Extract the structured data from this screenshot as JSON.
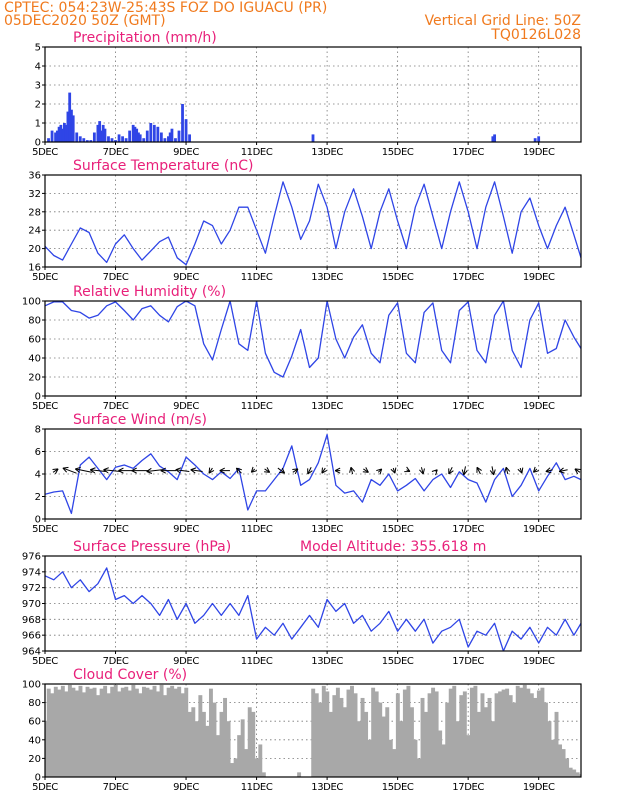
{
  "header": {
    "line1_left": "CPTEC:   054:23W-25:43S   FOZ DO IGUACU (PR)",
    "line2_left": "05DEC2020 50Z (GMT)",
    "line2_right": "Vertical Grid Line: 50Z",
    "line3_right": "TQ0126L028"
  },
  "colors": {
    "header": "#f07a1e",
    "panel_title": "#e8207a",
    "series": "#2f45e6",
    "cloud": "#a8a8a8"
  },
  "x_axis": {
    "tick_labels": [
      "5DEC",
      "7DEC",
      "9DEC",
      "11DEC",
      "13DEC",
      "15DEC",
      "17DEC",
      "19DEC"
    ],
    "tick_days": [
      5,
      7,
      9,
      11,
      13,
      15,
      17,
      19
    ],
    "start_day": 5,
    "end_day": 20.2
  },
  "chart_data": [
    {
      "id": "precip",
      "type": "bar",
      "title": "Precipitation (mm/h)",
      "ylim": [
        0,
        5
      ],
      "yticks": [
        0,
        1,
        2,
        3,
        4,
        5
      ],
      "x": [
        5.1,
        5.2,
        5.3,
        5.35,
        5.4,
        5.45,
        5.5,
        5.55,
        5.6,
        5.65,
        5.7,
        5.75,
        5.8,
        5.9,
        6.0,
        6.1,
        6.2,
        6.3,
        6.4,
        6.5,
        6.55,
        6.6,
        6.65,
        6.7,
        6.8,
        6.9,
        7.0,
        7.1,
        7.2,
        7.3,
        7.4,
        7.5,
        7.55,
        7.6,
        7.65,
        7.7,
        7.8,
        7.9,
        8.0,
        8.1,
        8.2,
        8.3,
        8.4,
        8.5,
        8.55,
        8.6,
        8.7,
        8.8,
        8.9,
        9.0,
        9.1,
        12.6,
        17.7,
        17.75,
        18.9,
        19.0
      ],
      "values": [
        0.2,
        0.6,
        0.5,
        0.6,
        0.8,
        0.9,
        0.7,
        1.0,
        0.9,
        1.6,
        2.6,
        1.7,
        1.4,
        0.5,
        0.3,
        0.2,
        0.1,
        0.1,
        0.5,
        0.9,
        1.1,
        0.6,
        0.9,
        0.7,
        0.3,
        0.2,
        0.1,
        0.4,
        0.3,
        0.2,
        0.6,
        0.9,
        0.8,
        0.7,
        0.5,
        0.4,
        0.2,
        0.6,
        1.0,
        0.9,
        0.8,
        0.5,
        0.2,
        0.3,
        0.5,
        0.7,
        0.2,
        0.6,
        2.0,
        1.2,
        0.4,
        0.4,
        0.3,
        0.4,
        0.2,
        0.3
      ]
    },
    {
      "id": "temp",
      "type": "line",
      "title": "Surface Temperature (nC)",
      "ylim": [
        16,
        36
      ],
      "yticks": [
        16,
        20,
        24,
        28,
        32,
        36
      ],
      "x": [
        5.0,
        5.25,
        5.5,
        5.75,
        6.0,
        6.25,
        6.5,
        6.75,
        7.0,
        7.25,
        7.5,
        7.75,
        8.0,
        8.25,
        8.5,
        8.75,
        9.0,
        9.25,
        9.5,
        9.75,
        10.0,
        10.25,
        10.5,
        10.75,
        11.0,
        11.25,
        11.5,
        11.75,
        12.0,
        12.25,
        12.5,
        12.75,
        13.0,
        13.25,
        13.5,
        13.75,
        14.0,
        14.25,
        14.5,
        14.75,
        15.0,
        15.25,
        15.5,
        15.75,
        16.0,
        16.25,
        16.5,
        16.75,
        17.0,
        17.25,
        17.5,
        17.75,
        18.0,
        18.25,
        18.5,
        18.75,
        19.0,
        19.25,
        19.5,
        19.75,
        20.0,
        20.2
      ],
      "values": [
        20.5,
        18.5,
        17.5,
        21,
        24.5,
        23.5,
        19,
        17,
        21,
        23,
        20,
        17.5,
        19.5,
        21.5,
        22.5,
        18,
        16.5,
        21,
        26,
        25,
        21,
        24,
        29,
        29,
        24,
        19,
        27,
        34.5,
        29,
        22,
        26,
        34,
        29,
        20,
        28,
        33,
        27,
        20,
        28,
        33,
        26,
        20,
        29,
        34,
        27,
        20,
        28,
        34.5,
        28,
        20,
        29,
        34.5,
        27,
        19,
        28,
        31,
        25,
        20,
        25,
        29,
        23,
        18
      ]
    },
    {
      "id": "rh",
      "type": "line",
      "title": "Relative Humidity (%)",
      "ylim": [
        0,
        100
      ],
      "yticks": [
        0,
        20,
        40,
        60,
        80,
        100
      ],
      "x": [
        5.0,
        5.25,
        5.5,
        5.75,
        6.0,
        6.25,
        6.5,
        6.75,
        7.0,
        7.25,
        7.5,
        7.75,
        8.0,
        8.25,
        8.5,
        8.75,
        9.0,
        9.25,
        9.5,
        9.75,
        10.0,
        10.25,
        10.5,
        10.75,
        11.0,
        11.25,
        11.5,
        11.75,
        12.0,
        12.25,
        12.5,
        12.75,
        13.0,
        13.25,
        13.5,
        13.75,
        14.0,
        14.25,
        14.5,
        14.75,
        15.0,
        15.25,
        15.5,
        15.75,
        16.0,
        16.25,
        16.5,
        16.75,
        17.0,
        17.25,
        17.5,
        17.75,
        18.0,
        18.25,
        18.5,
        18.75,
        19.0,
        19.25,
        19.5,
        19.75,
        20.0,
        20.2
      ],
      "values": [
        95,
        99,
        99,
        90,
        88,
        82,
        85,
        95,
        99,
        90,
        80,
        92,
        95,
        85,
        78,
        94,
        100,
        95,
        55,
        38,
        70,
        100,
        55,
        48,
        100,
        45,
        25,
        20,
        42,
        70,
        30,
        40,
        100,
        60,
        40,
        62,
        75,
        45,
        35,
        85,
        98,
        45,
        35,
        88,
        98,
        48,
        35,
        90,
        99,
        48,
        35,
        85,
        100,
        48,
        30,
        80,
        98,
        45,
        50,
        80,
        62,
        50
      ]
    },
    {
      "id": "wind",
      "type": "line",
      "title": "Surface Wind (m/s)",
      "ylim": [
        0,
        8
      ],
      "yticks": [
        0,
        2,
        4,
        6,
        8
      ],
      "x": [
        5.0,
        5.25,
        5.5,
        5.75,
        6.0,
        6.25,
        6.5,
        6.75,
        7.0,
        7.25,
        7.5,
        7.75,
        8.0,
        8.25,
        8.5,
        8.75,
        9.0,
        9.25,
        9.5,
        9.75,
        10.0,
        10.25,
        10.5,
        10.75,
        11.0,
        11.25,
        11.5,
        11.75,
        12.0,
        12.25,
        12.5,
        12.75,
        13.0,
        13.25,
        13.5,
        13.75,
        14.0,
        14.25,
        14.5,
        14.75,
        15.0,
        15.25,
        15.5,
        15.75,
        16.0,
        16.25,
        16.5,
        16.75,
        17.0,
        17.25,
        17.5,
        17.75,
        18.0,
        18.25,
        18.5,
        18.75,
        19.0,
        19.25,
        19.5,
        19.75,
        20.0,
        20.2
      ],
      "values": [
        2.2,
        2.4,
        2.5,
        0.5,
        4.8,
        5.5,
        4.5,
        3.5,
        4.6,
        4.8,
        4.5,
        5.2,
        5.8,
        4.7,
        4.2,
        3.5,
        5.5,
        4.8,
        4.0,
        3.5,
        4.2,
        3.6,
        4.5,
        0.8,
        2.5,
        2.5,
        3.5,
        4.5,
        6.5,
        3.0,
        3.5,
        5.0,
        7.5,
        3.0,
        2.3,
        2.5,
        1.5,
        3.5,
        3.0,
        4.0,
        2.5,
        3.0,
        3.6,
        2.5,
        3.5,
        4.0,
        2.8,
        4.2,
        3.5,
        3.2,
        1.5,
        3.5,
        4.5,
        2.0,
        3.0,
        4.5,
        2.5,
        3.8,
        5.0,
        3.5,
        3.8,
        3.5
      ],
      "arrows": {
        "x": [
          5.3,
          5.7,
          6.1,
          6.5,
          6.9,
          7.3,
          7.7,
          8.1,
          8.5,
          8.9,
          9.3,
          9.7,
          10.1,
          10.5,
          10.9,
          11.3,
          11.7,
          12.1,
          12.5,
          12.9,
          13.3,
          13.7,
          14.1,
          14.5,
          14.9,
          15.3,
          15.7,
          16.1,
          16.5,
          16.9,
          17.3,
          17.7,
          18.1,
          18.5,
          18.9,
          19.3,
          19.7,
          20.1
        ],
        "u": [
          1.5,
          -4.0,
          -5.0,
          -4.5,
          -5.0,
          -4.5,
          -5.0,
          -4.5,
          -4.5,
          -4.0,
          -3.5,
          -1.0,
          -3.0,
          -1.5,
          -1.0,
          1.5,
          2.0,
          1.5,
          -1.0,
          -1.0,
          -1.5,
          -0.5,
          1.5,
          1.0,
          0.5,
          1.0,
          0.5,
          0.5,
          -1.0,
          -0.5,
          -1.0,
          0.5,
          -0.5,
          0.5,
          -1.0,
          -2.0,
          -2.5,
          -1.5
        ],
        "v": [
          1.0,
          1.5,
          1.0,
          0.5,
          0.5,
          0.0,
          0.0,
          -0.5,
          0.0,
          0.5,
          0.5,
          -1.5,
          0.0,
          1.5,
          -1.0,
          -1.0,
          -1.5,
          1.0,
          -2.0,
          -1.5,
          0.0,
          2.0,
          -1.0,
          1.0,
          -1.5,
          -0.5,
          -2.0,
          0.5,
          -2.0,
          -2.5,
          2.0,
          -2.5,
          2.0,
          -1.5,
          -1.0,
          -0.5,
          -0.5,
          1.0
        ]
      }
    },
    {
      "id": "pres",
      "type": "line",
      "title": "Surface Pressure (hPa)",
      "extra_label": "Model Altitude: 355.618 m",
      "ylim": [
        964,
        976
      ],
      "yticks": [
        964,
        966,
        968,
        970,
        972,
        974,
        976
      ],
      "x": [
        5.0,
        5.25,
        5.5,
        5.75,
        6.0,
        6.25,
        6.5,
        6.75,
        7.0,
        7.25,
        7.5,
        7.75,
        8.0,
        8.25,
        8.5,
        8.75,
        9.0,
        9.25,
        9.5,
        9.75,
        10.0,
        10.25,
        10.5,
        10.75,
        11.0,
        11.25,
        11.5,
        11.75,
        12.0,
        12.25,
        12.5,
        12.75,
        13.0,
        13.25,
        13.5,
        13.75,
        14.0,
        14.25,
        14.5,
        14.75,
        15.0,
        15.25,
        15.5,
        15.75,
        16.0,
        16.25,
        16.5,
        16.75,
        17.0,
        17.25,
        17.5,
        17.75,
        18.0,
        18.25,
        18.5,
        18.75,
        19.0,
        19.25,
        19.5,
        19.75,
        20.0,
        20.2
      ],
      "values": [
        973.5,
        973,
        974,
        972,
        973,
        971.5,
        972.5,
        974.5,
        970.5,
        971,
        970,
        971,
        970,
        968.5,
        970.5,
        968,
        970,
        967.5,
        968.5,
        970,
        968.5,
        970,
        968.5,
        971,
        965.5,
        967,
        966,
        967.5,
        965.5,
        967,
        968.5,
        967,
        970.5,
        969,
        970,
        967.5,
        968.5,
        966.5,
        967.5,
        969,
        966.5,
        968,
        966.5,
        968,
        965,
        966.5,
        967,
        968,
        964.5,
        966.5,
        966,
        967.5,
        964,
        966.5,
        965.5,
        967,
        965,
        967,
        966,
        968,
        966,
        967.5
      ]
    },
    {
      "id": "cloud",
      "type": "area",
      "title": "Cloud Cover (%)",
      "ylim": [
        0,
        100
      ],
      "yticks": [
        0,
        20,
        40,
        60,
        80,
        100
      ],
      "x": [
        5.0,
        5.1,
        5.2,
        5.3,
        5.4,
        5.5,
        5.6,
        5.7,
        5.8,
        5.9,
        6.0,
        6.1,
        6.2,
        6.3,
        6.4,
        6.5,
        6.6,
        6.7,
        6.8,
        6.9,
        7.0,
        7.1,
        7.2,
        7.3,
        7.4,
        7.5,
        7.6,
        7.7,
        7.8,
        7.9,
        8.0,
        8.1,
        8.2,
        8.3,
        8.4,
        8.5,
        8.6,
        8.7,
        8.8,
        8.9,
        9.0,
        9.1,
        9.2,
        9.3,
        9.4,
        9.5,
        9.6,
        9.7,
        9.8,
        9.9,
        10.0,
        10.1,
        10.2,
        10.3,
        10.4,
        10.5,
        10.6,
        10.7,
        10.8,
        10.9,
        11.0,
        11.1,
        11.2,
        11.3,
        11.4,
        11.5,
        11.6,
        11.7,
        11.8,
        11.9,
        12.0,
        12.1,
        12.2,
        12.3,
        12.4,
        12.5,
        12.6,
        12.7,
        12.8,
        12.9,
        13.0,
        13.1,
        13.2,
        13.3,
        13.4,
        13.5,
        13.6,
        13.7,
        13.8,
        13.9,
        14.0,
        14.1,
        14.2,
        14.3,
        14.4,
        14.5,
        14.6,
        14.7,
        14.8,
        14.9,
        15.0,
        15.1,
        15.2,
        15.3,
        15.4,
        15.5,
        15.6,
        15.7,
        15.8,
        15.9,
        16.0,
        16.1,
        16.2,
        16.3,
        16.4,
        16.5,
        16.6,
        16.7,
        16.8,
        16.9,
        17.0,
        17.1,
        17.2,
        17.3,
        17.4,
        17.5,
        17.6,
        17.7,
        17.8,
        17.9,
        18.0,
        18.1,
        18.2,
        18.3,
        18.4,
        18.5,
        18.6,
        18.7,
        18.8,
        18.9,
        19.0,
        19.1,
        19.2,
        19.3,
        19.4,
        19.5,
        19.6,
        19.7,
        19.8,
        19.9,
        20.0,
        20.1,
        20.2
      ],
      "values": [
        60,
        95,
        90,
        97,
        94,
        98,
        92,
        99,
        96,
        93,
        98,
        91,
        97,
        95,
        96,
        88,
        95,
        98,
        90,
        97,
        99,
        92,
        96,
        97,
        93,
        99,
        95,
        90,
        97,
        96,
        94,
        98,
        92,
        99,
        88,
        96,
        98,
        95,
        97,
        90,
        96,
        70,
        75,
        60,
        88,
        70,
        55,
        95,
        80,
        45,
        70,
        85,
        60,
        15,
        20,
        45,
        62,
        30,
        75,
        70,
        20,
        35,
        5,
        0,
        0,
        0,
        0,
        0,
        0,
        0,
        0,
        0,
        5,
        0,
        0,
        0,
        95,
        90,
        80,
        98,
        92,
        70,
        88,
        96,
        85,
        75,
        94,
        98,
        90,
        60,
        85,
        70,
        40,
        96,
        92,
        80,
        65,
        75,
        40,
        30,
        90,
        60,
        94,
        98,
        75,
        40,
        20,
        85,
        70,
        90,
        96,
        92,
        50,
        35,
        80,
        95,
        98,
        60,
        88,
        92,
        45,
        96,
        98,
        70,
        90,
        75,
        85,
        60,
        90,
        92,
        94,
        95,
        88,
        80,
        98,
        96,
        99,
        95,
        90,
        85,
        93,
        96,
        80,
        60,
        40,
        70,
        35,
        30,
        20,
        10,
        8,
        5,
        3
      ]
    }
  ]
}
